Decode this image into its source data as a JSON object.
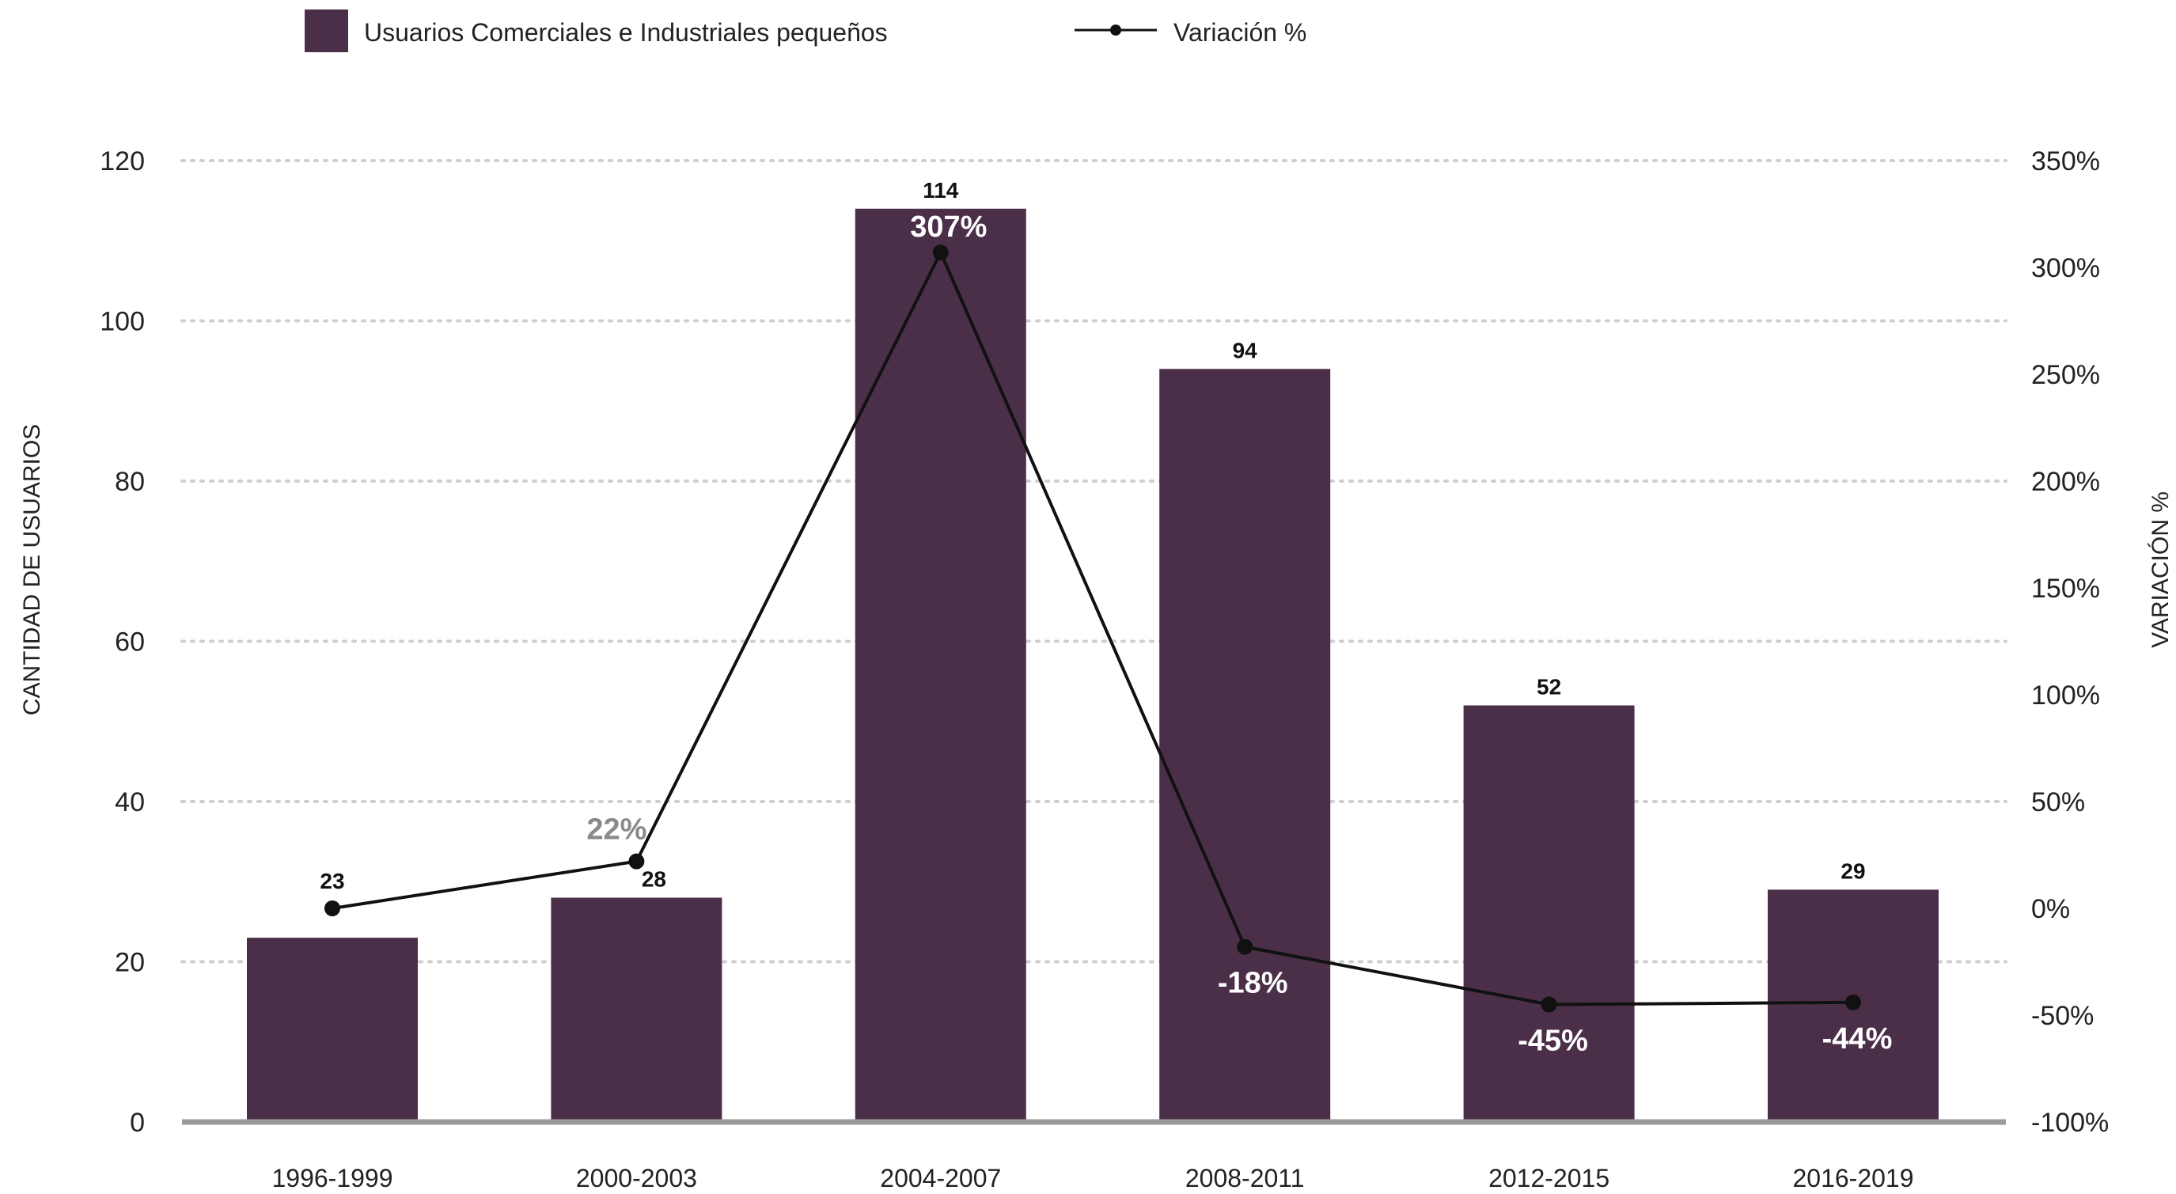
{
  "chart_data": {
    "type": "bar",
    "categories": [
      "1996-1999",
      "2000-2003",
      "2004-2007",
      "2008-2011",
      "2012-2015",
      "2016-2019"
    ],
    "series": [
      {
        "name": "Usuarios Comerciales e Industriales pequeños",
        "type": "bar",
        "axis": "left",
        "color": "#4b2f48",
        "values": [
          23,
          28,
          114,
          94,
          52,
          29
        ],
        "labels": [
          "23",
          "28",
          "114",
          "94",
          "52",
          "29"
        ]
      },
      {
        "name": "Variación %",
        "type": "line",
        "axis": "right",
        "color": "#111111",
        "values": [
          0,
          22,
          307,
          -18,
          -45,
          -44
        ],
        "labels": [
          "",
          "22%",
          "307%",
          "-18%",
          "-45%",
          "-44%"
        ],
        "label_colors": [
          "#ffffff",
          "#8a8a8a",
          "#ffffff",
          "#ffffff",
          "#ffffff",
          "#ffffff"
        ]
      }
    ],
    "ylabel": "CANTIDAD DE USUARIOS",
    "y2label": "VARIACIÓN %",
    "ylim": [
      0,
      120
    ],
    "yticks": [
      "0",
      "20",
      "40",
      "60",
      "80",
      "100",
      "120"
    ],
    "y2lim": [
      -100,
      350
    ],
    "y2ticks": [
      "-100%",
      "-50%",
      "0%",
      "50%",
      "100%",
      "150%",
      "200%",
      "250%",
      "300%",
      "350%"
    ],
    "grid": true,
    "legend": "top"
  }
}
